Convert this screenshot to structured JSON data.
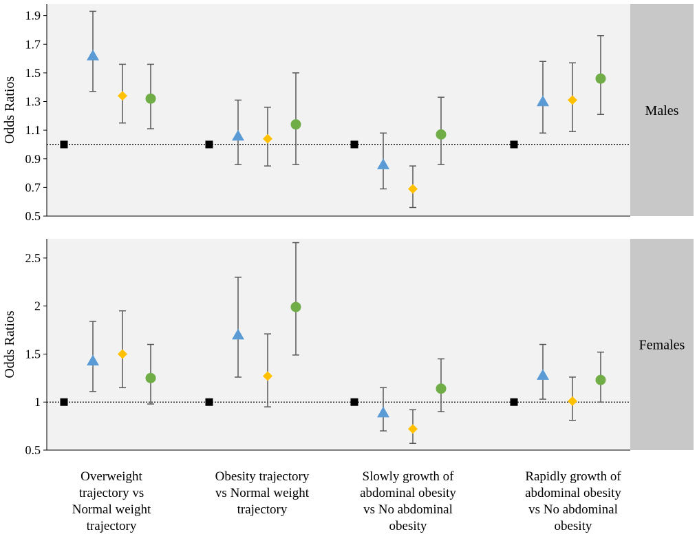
{
  "chart_data": [
    {
      "type": "scatter",
      "panel": "Males",
      "ylabel": "Odds Ratios",
      "ylim": [
        0.5,
        1.98
      ],
      "yticks": [
        "0.5",
        "0.7",
        "0.9",
        "1.1",
        "1.3",
        "1.5",
        "1.7",
        "1.9"
      ],
      "yticks_values": [
        0.5,
        0.7,
        0.9,
        1.1,
        1.3,
        1.5,
        1.7,
        1.9
      ],
      "reference_line": 1.0,
      "groups": [
        {
          "reference": 1.0,
          "points": [
            {
              "shape": "triangle",
              "color": "#5b9bd5",
              "value": 1.62,
              "ci": [
                1.37,
                1.93
              ]
            },
            {
              "shape": "diamond",
              "color": "#ffc000",
              "value": 1.34,
              "ci": [
                1.15,
                1.56
              ]
            },
            {
              "shape": "circle",
              "color": "#70ad47",
              "value": 1.32,
              "ci": [
                1.11,
                1.56
              ]
            }
          ]
        },
        {
          "reference": 1.0,
          "points": [
            {
              "shape": "triangle",
              "color": "#5b9bd5",
              "value": 1.06,
              "ci": [
                0.86,
                1.31
              ]
            },
            {
              "shape": "diamond",
              "color": "#ffc000",
              "value": 1.04,
              "ci": [
                0.85,
                1.26
              ]
            },
            {
              "shape": "circle",
              "color": "#70ad47",
              "value": 1.14,
              "ci": [
                0.86,
                1.5
              ]
            }
          ]
        },
        {
          "reference": 1.0,
          "points": [
            {
              "shape": "triangle",
              "color": "#5b9bd5",
              "value": 0.86,
              "ci": [
                0.69,
                1.08
              ]
            },
            {
              "shape": "diamond",
              "color": "#ffc000",
              "value": 0.69,
              "ci": [
                0.56,
                0.85
              ]
            },
            {
              "shape": "circle",
              "color": "#70ad47",
              "value": 1.07,
              "ci": [
                0.86,
                1.33
              ]
            }
          ]
        },
        {
          "reference": 1.0,
          "points": [
            {
              "shape": "triangle",
              "color": "#5b9bd5",
              "value": 1.3,
              "ci": [
                1.08,
                1.58
              ]
            },
            {
              "shape": "diamond",
              "color": "#ffc000",
              "value": 1.31,
              "ci": [
                1.09,
                1.57
              ]
            },
            {
              "shape": "circle",
              "color": "#70ad47",
              "value": 1.46,
              "ci": [
                1.21,
                1.76
              ]
            }
          ]
        }
      ]
    },
    {
      "type": "scatter",
      "panel": "Females",
      "ylabel": "Odds Ratios",
      "ylim": [
        0.5,
        2.7
      ],
      "yticks": [
        "0.5",
        "1",
        "1.5",
        "2",
        "2.5"
      ],
      "yticks_values": [
        0.5,
        1,
        1.5,
        2,
        2.5
      ],
      "reference_line": 1.0,
      "groups": [
        {
          "reference": 1.0,
          "points": [
            {
              "shape": "triangle",
              "color": "#5b9bd5",
              "value": 1.43,
              "ci": [
                1.11,
                1.84
              ]
            },
            {
              "shape": "diamond",
              "color": "#ffc000",
              "value": 1.5,
              "ci": [
                1.15,
                1.95
              ]
            },
            {
              "shape": "circle",
              "color": "#70ad47",
              "value": 1.25,
              "ci": [
                0.98,
                1.6
              ]
            }
          ]
        },
        {
          "reference": 1.0,
          "points": [
            {
              "shape": "triangle",
              "color": "#5b9bd5",
              "value": 1.7,
              "ci": [
                1.26,
                2.3
              ]
            },
            {
              "shape": "diamond",
              "color": "#ffc000",
              "value": 1.27,
              "ci": [
                0.95,
                1.71
              ]
            },
            {
              "shape": "circle",
              "color": "#70ad47",
              "value": 1.99,
              "ci": [
                1.49,
                2.66
              ]
            }
          ]
        },
        {
          "reference": 1.0,
          "points": [
            {
              "shape": "triangle",
              "color": "#5b9bd5",
              "value": 0.89,
              "ci": [
                0.7,
                1.15
              ]
            },
            {
              "shape": "diamond",
              "color": "#ffc000",
              "value": 0.72,
              "ci": [
                0.57,
                0.92
              ]
            },
            {
              "shape": "circle",
              "color": "#70ad47",
              "value": 1.14,
              "ci": [
                0.9,
                1.45
              ]
            }
          ]
        },
        {
          "reference": 1.0,
          "points": [
            {
              "shape": "triangle",
              "color": "#5b9bd5",
              "value": 1.28,
              "ci": [
                1.03,
                1.6
              ]
            },
            {
              "shape": "diamond",
              "color": "#ffc000",
              "value": 1.01,
              "ci": [
                0.81,
                1.26
              ]
            },
            {
              "shape": "circle",
              "color": "#70ad47",
              "value": 1.23,
              "ci": [
                1.0,
                1.52
              ]
            }
          ]
        }
      ]
    }
  ],
  "categories": [
    [
      "Overweight",
      "trajectory vs",
      "Normal weight",
      "trajectory"
    ],
    [
      "Obesity trajectory",
      "vs Normal weight",
      "trajectory"
    ],
    [
      "Slowly growth of",
      "abdominal obesity",
      "vs No abdominal",
      "obesity"
    ],
    [
      "Rapidly growth of",
      "abdominal obesity",
      "vs No abdominal",
      "obesity"
    ]
  ],
  "colors": {
    "reference": "#000000",
    "plot_background": "#f2f2f2",
    "strip": "#c8c8c8",
    "errorbar": "#595959"
  }
}
